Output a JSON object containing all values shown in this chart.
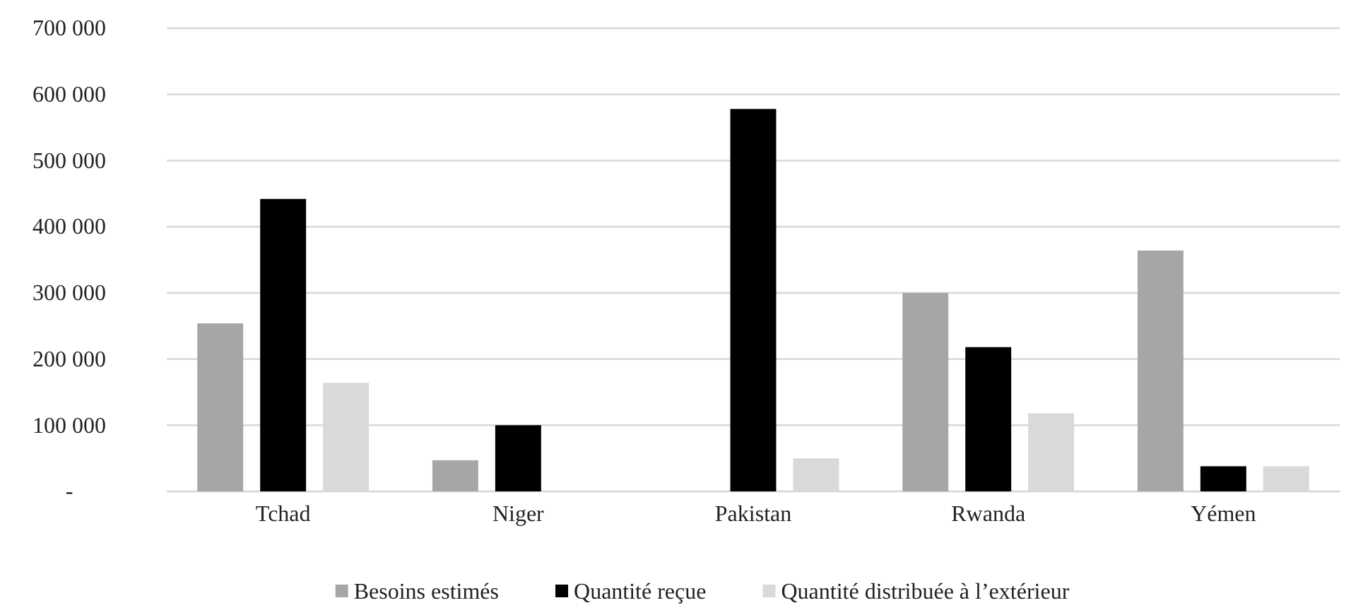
{
  "chart_data": {
    "type": "bar",
    "categories": [
      "Tchad",
      "Niger",
      "Pakistan",
      "Rwanda",
      "Yémen"
    ],
    "series": [
      {
        "name": "Besoins estimés",
        "color": "#a6a6a6",
        "values": [
          254000,
          47000,
          null,
          300000,
          364000
        ]
      },
      {
        "name": "Quantité reçue",
        "color": "#000000",
        "values": [
          442000,
          100000,
          578000,
          218000,
          38000
        ]
      },
      {
        "name": "Quantité distribuée à l’extérieur",
        "color": "#d9d9d9",
        "values": [
          164000,
          null,
          50000,
          118000,
          38000
        ]
      }
    ],
    "ylim": [
      0,
      700000
    ],
    "yticks": [
      {
        "value": 0,
        "label": "-"
      },
      {
        "value": 100000,
        "label": "100 000"
      },
      {
        "value": 200000,
        "label": "200 000"
      },
      {
        "value": 300000,
        "label": "300 000"
      },
      {
        "value": 400000,
        "label": "400 000"
      },
      {
        "value": 500000,
        "label": "500 000"
      },
      {
        "value": 600000,
        "label": "600 000"
      },
      {
        "value": 700000,
        "label": "700 000"
      }
    ],
    "grid": "y",
    "legend": "bottom"
  }
}
